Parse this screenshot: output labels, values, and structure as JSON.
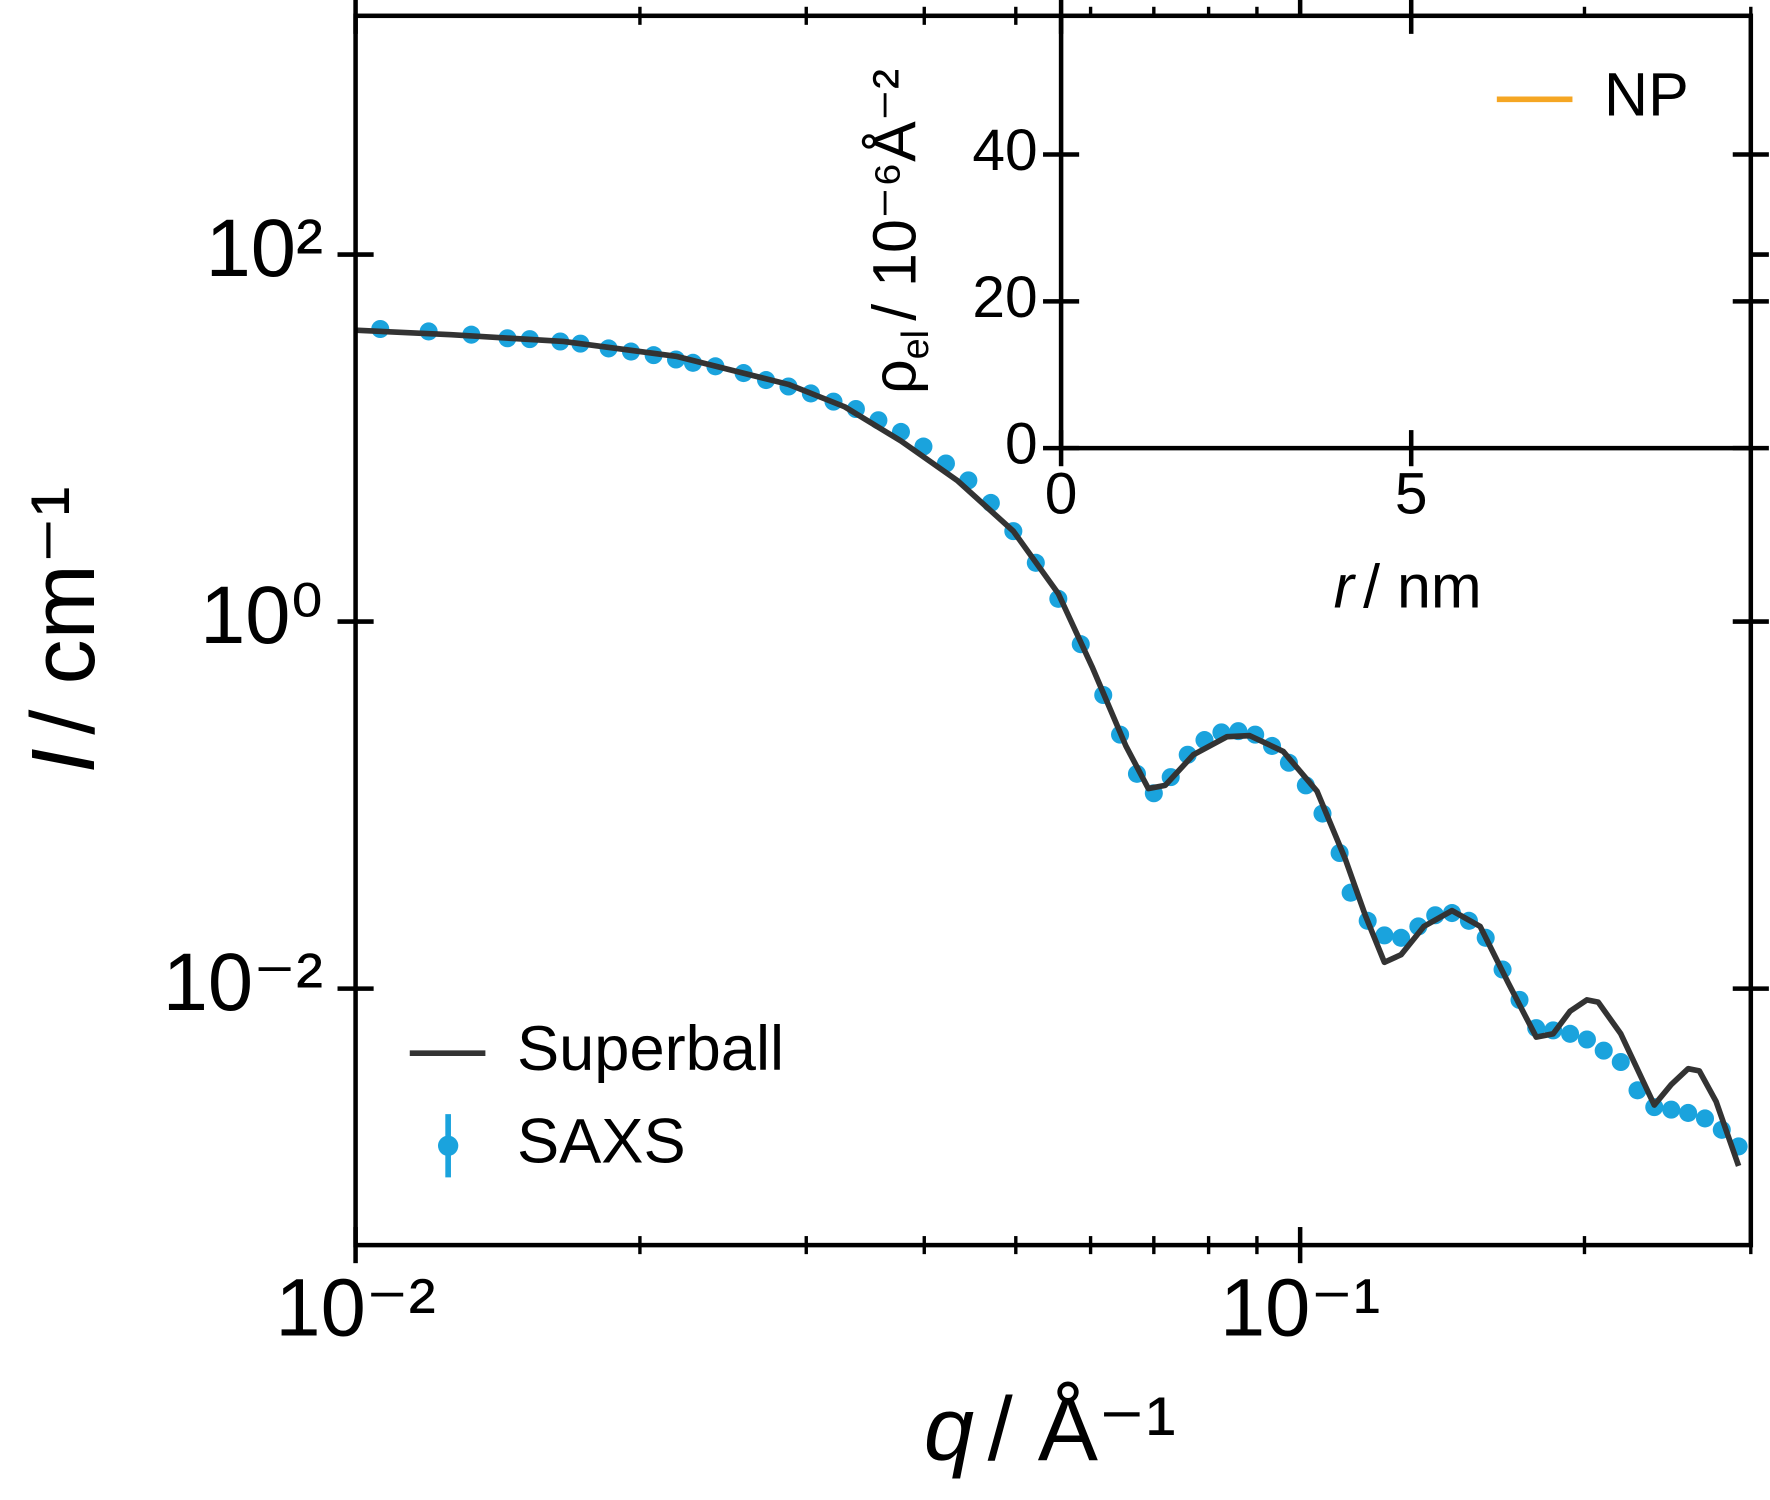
{
  "chart_data": [
    {
      "type": "line",
      "xscale": "log",
      "yscale": "log",
      "xlabel": {
        "symbol": "q",
        "unit": "/ Å⁻¹",
        "symbol_italic": true
      },
      "ylabel": {
        "symbol": "I",
        "unit": "/ cm⁻¹",
        "symbol_italic": true
      },
      "xlim": [
        0.01,
        0.3
      ],
      "ylim": [
        0.0004,
        2000
      ],
      "xticks": [
        {
          "value": 0.01,
          "label": "10⁻²"
        },
        {
          "value": 0.1,
          "label": "10⁻¹"
        }
      ],
      "xminorticks": [
        0.02,
        0.03,
        0.04,
        0.05,
        0.06,
        0.07,
        0.08,
        0.09,
        0.2,
        0.3
      ],
      "yticks": [
        {
          "value": 0.01,
          "label": "10⁻²"
        },
        {
          "value": 1,
          "label": "10⁰"
        },
        {
          "value": 100,
          "label": "10²"
        }
      ],
      "legend": "lower left",
      "series": [
        {
          "name": "Superball",
          "color": "#333333",
          "style": "line",
          "x": [
            0.01,
            0.01262,
            0.0166,
            0.02184,
            0.02873,
            0.03295,
            0.03779,
            0.04334,
            0.0497,
            0.05546,
            0.06022,
            0.06539,
            0.06907,
            0.07197,
            0.07708,
            0.08369,
            0.08842,
            0.09597,
            0.1042,
            0.1116,
            0.1172,
            0.1228,
            0.1279,
            0.1352,
            0.1448,
            0.1551,
            0.1661,
            0.1778,
            0.1853,
            0.1931,
            0.2012,
            0.2068,
            0.2185,
            0.2371,
            0.2471,
            0.2575,
            0.2646,
            0.2757,
            0.2912
          ],
          "values": [
            38.7,
            36.6,
            33.6,
            27.9,
            19.6,
            14.8,
            9.65,
            5.88,
            3.11,
            1.42,
            0.567,
            0.21,
            0.123,
            0.128,
            0.188,
            0.236,
            0.239,
            0.196,
            0.119,
            0.051,
            0.0251,
            0.0139,
            0.0153,
            0.0218,
            0.0266,
            0.0218,
            0.01073,
            0.00544,
            0.00567,
            0.00753,
            0.00868,
            0.00844,
            0.00567,
            0.00232,
            0.003,
            0.00366,
            0.00356,
            0.00242,
            0.00108
          ]
        },
        {
          "name": "SAXS",
          "color": "#1aa3dd",
          "style": "markers",
          "x": [
            0.01062,
            0.01195,
            0.01326,
            0.01448,
            0.01529,
            0.01647,
            0.0173,
            0.01853,
            0.01957,
            0.02068,
            0.02184,
            0.02276,
            0.02404,
            0.02575,
            0.0272,
            0.02873,
            0.03034,
            0.03206,
            0.03386,
            0.03577,
            0.03779,
            0.03992,
            0.04217,
            0.04454,
            0.04705,
            0.0497,
            0.0525,
            0.05546,
            0.05858,
            0.06188,
            0.06447,
            0.06718,
            0.07,
            0.07294,
            0.07603,
            0.0792,
            0.08254,
            0.08601,
            0.08962,
            0.09338,
            0.0973,
            0.1014,
            0.1056,
            0.1101,
            0.1131,
            0.1179,
            0.1228,
            0.1279,
            0.1334,
            0.139,
            0.1448,
            0.1509,
            0.1572,
            0.1638,
            0.1707,
            0.1778,
            0.1853,
            0.1931,
            0.2012,
            0.2096,
            0.2185,
            0.2276,
            0.2371,
            0.2471,
            0.2575,
            0.2683,
            0.2795,
            0.2912
          ],
          "values": [
            39.3,
            38.1,
            36.6,
            35.0,
            34.6,
            33.6,
            32.7,
            30.8,
            29.6,
            28.3,
            26.8,
            25.7,
            24.6,
            22.6,
            20.7,
            19.1,
            17.5,
            15.8,
            14.4,
            12.5,
            10.8,
            8.99,
            7.27,
            5.88,
            4.43,
            3.11,
            2.09,
            1.33,
            0.753,
            0.398,
            0.242,
            0.148,
            0.116,
            0.142,
            0.188,
            0.226,
            0.249,
            0.253,
            0.242,
            0.21,
            0.17,
            0.128,
            0.0899,
            0.0548,
            0.0333,
            0.0234,
            0.0195,
            0.0189,
            0.0218,
            0.0251,
            0.0258,
            0.0234,
            0.0189,
            0.0127,
            0.00868,
            0.00609,
            0.00592,
            0.00567,
            0.00528,
            0.00459,
            0.00398,
            0.00279,
            0.00226,
            0.00219,
            0.0021,
            0.00196,
            0.0017,
            0.00138
          ]
        }
      ]
    },
    {
      "type": "line",
      "xscale": "linear",
      "yscale": "linear",
      "xlabel": {
        "symbol": "r",
        "unit": "/ nm",
        "symbol_italic": true
      },
      "ylabel": {
        "symbol": "ρ",
        "subscript": "el",
        "unit": "/ 10⁻⁶Å⁻²",
        "symbol_italic": false
      },
      "xlim": [
        0,
        9.85
      ],
      "ylim": [
        0,
        58.9
      ],
      "xticks": [
        0,
        5
      ],
      "yticks": [
        0,
        20,
        40
      ],
      "legend": "upper right",
      "series": [
        {
          "name": "NP",
          "color": "#f5a623",
          "style": "line"
        }
      ]
    }
  ]
}
